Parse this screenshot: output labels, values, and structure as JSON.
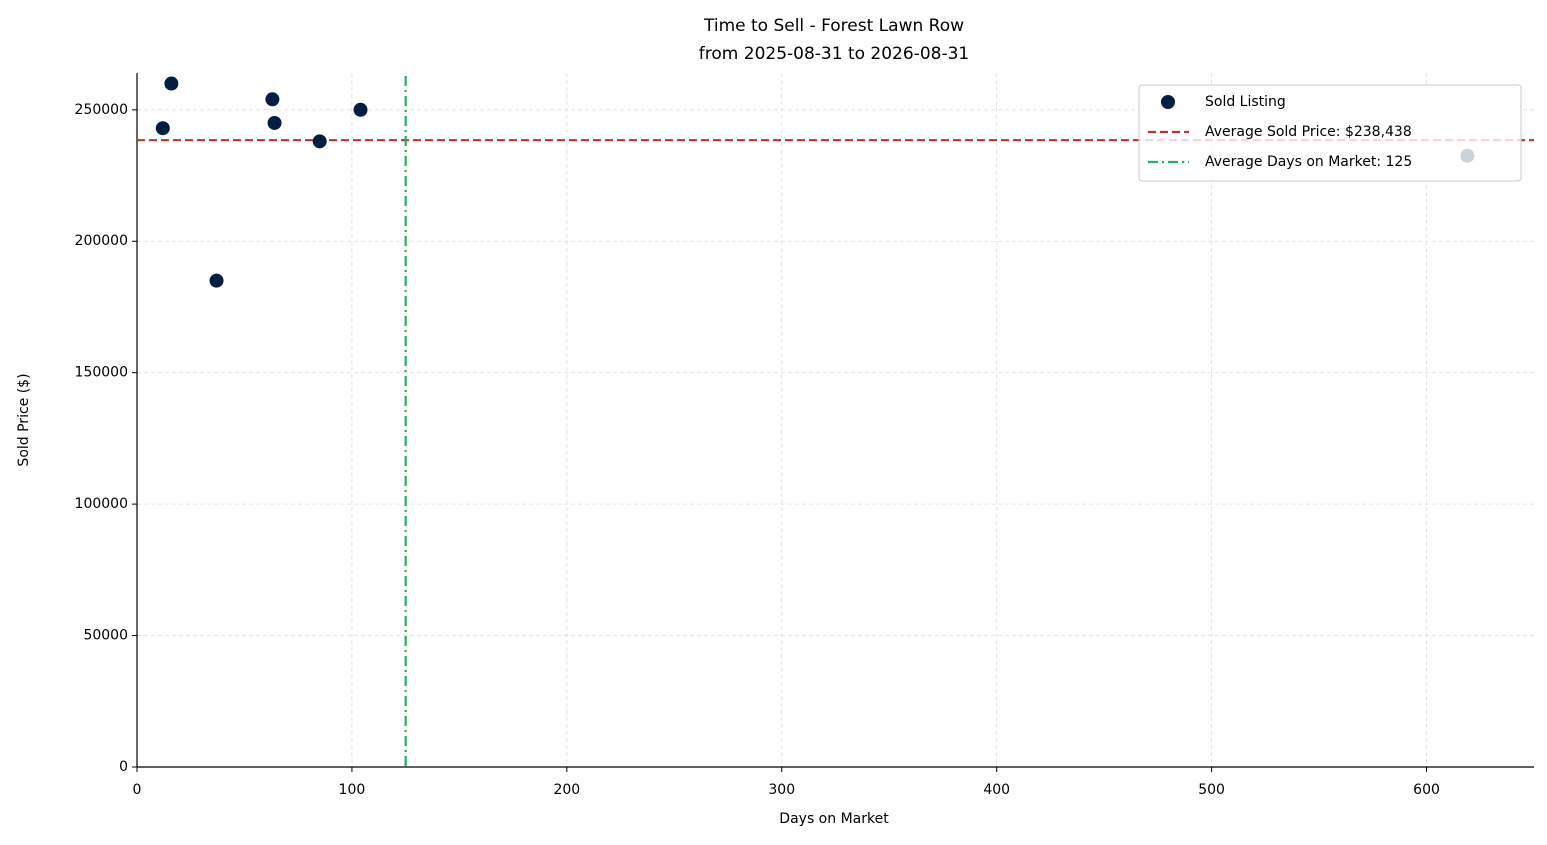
{
  "chart_data": {
    "type": "scatter",
    "title": "Time to Sell - Forest Lawn Row",
    "subtitle": "from 2025-08-31 to 2026-08-31",
    "x_label": "Days on Market",
    "y_label": "Sold Price ($)",
    "series": [
      {
        "name": "Sold Listing",
        "color": "#041e42",
        "x": [
          12,
          16,
          37,
          63,
          64,
          85,
          104,
          619
        ],
        "values": [
          243000,
          260000,
          185000,
          254000,
          245000,
          238000,
          250000,
          232500
        ]
      }
    ],
    "reference_lines": [
      {
        "name": "Average Sold Price: $238,438",
        "orientation": "horizontal",
        "value": 238438,
        "color": "#b03a2e",
        "dash": "dashed"
      },
      {
        "name": "Average Days on Market: 125",
        "orientation": "vertical",
        "value": 125,
        "color": "#27ae60",
        "dash": "dashdot"
      }
    ],
    "xlim": [
      0,
      650
    ],
    "ylim": [
      0,
      264000
    ],
    "xticks": [
      0,
      100,
      200,
      300,
      400,
      500,
      600
    ],
    "yticks": [
      0,
      50000,
      100000,
      150000,
      200000,
      250000
    ],
    "grid": true,
    "legend": "upper right"
  }
}
